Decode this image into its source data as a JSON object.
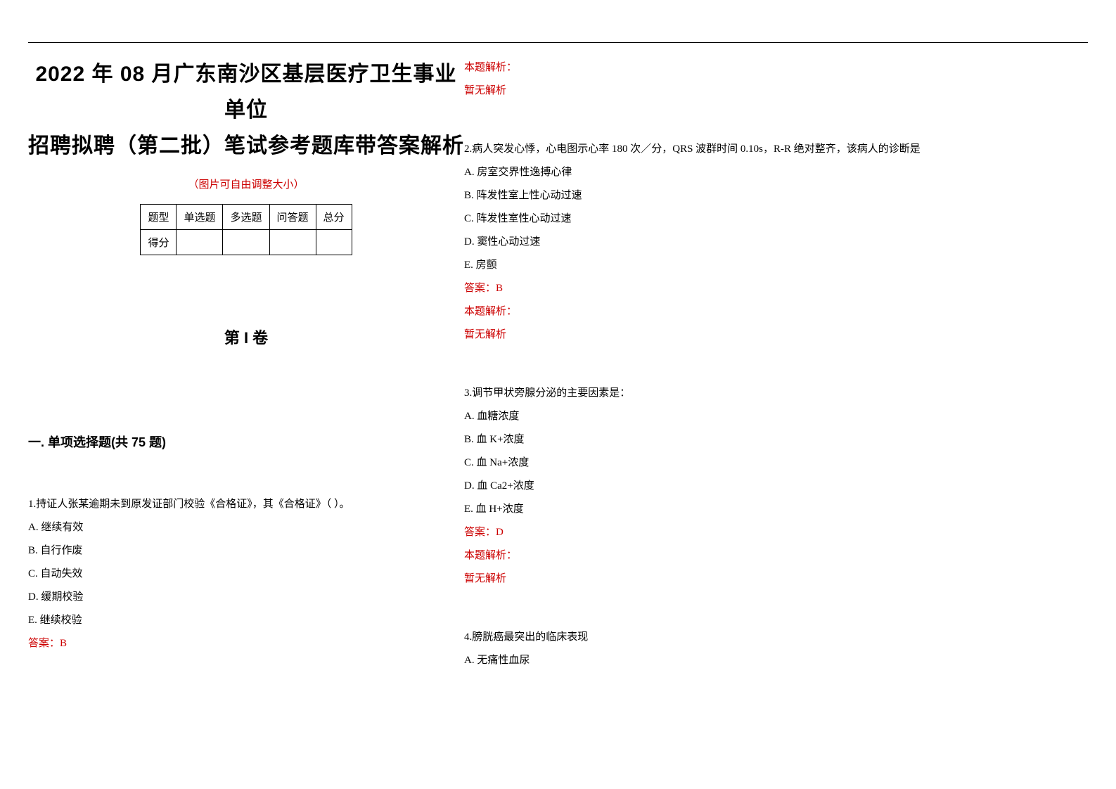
{
  "colors": {
    "text": "#000000",
    "accent": "#cc0000",
    "background": "#ffffff",
    "border": "#000000"
  },
  "typography": {
    "title_family": "SimHei",
    "body_family": "SimSun",
    "title_size_pt": 22,
    "body_size_pt": 11
  },
  "header": {
    "title_line1": "2022 年 08 月广东南沙区基层医疗卫生事业单位",
    "title_line2": "招聘拟聘（第二批）笔试参考题库带答案解析",
    "image_note": "（图片可自由调整大小）"
  },
  "score_table": {
    "headers": [
      "题型",
      "单选题",
      "多选题",
      "问答题",
      "总分"
    ],
    "row_label": "得分"
  },
  "volume_label": "第 I 卷",
  "section1": {
    "heading": "一. 单项选择题(共 75 题)"
  },
  "questions": [
    {
      "number": "1.",
      "stem": "持证人张某逾期未到原发证部门校验《合格证》，其《合格证》（  ）。",
      "options": [
        "A. 继续有效",
        "B. 自行作废",
        "C. 自动失效",
        "D. 缓期校验",
        "E. 继续校验"
      ],
      "answer": "答案：B",
      "analysis_label": "本题解析：",
      "analysis_body": "暂无解析"
    },
    {
      "number": "2.",
      "stem": "病人突发心悸，心电图示心率 180 次／分，QRS 波群时间 0.10s，R-R 绝对整齐，该病人的诊断是",
      "options": [
        "A. 房室交界性逸搏心律",
        "B. 阵发性室上性心动过速",
        "C. 阵发性室性心动过速",
        "D. 窦性心动过速",
        "E. 房颤"
      ],
      "answer": "答案：B",
      "analysis_label": "本题解析：",
      "analysis_body": "暂无解析"
    },
    {
      "number": "3.",
      "stem": "调节甲状旁腺分泌的主要因素是：",
      "options": [
        "A. 血糖浓度",
        "B. 血 K+浓度",
        "C. 血 Na+浓度",
        "D. 血 Ca2+浓度",
        "E. 血 H+浓度"
      ],
      "answer": "答案：D",
      "analysis_label": "本题解析：",
      "analysis_body": "暂无解析"
    },
    {
      "number": "4.",
      "stem": "膀胱癌最突出的临床表现",
      "options": [
        "A. 无痛性血尿"
      ],
      "answer": "",
      "analysis_label": "",
      "analysis_body": ""
    }
  ]
}
